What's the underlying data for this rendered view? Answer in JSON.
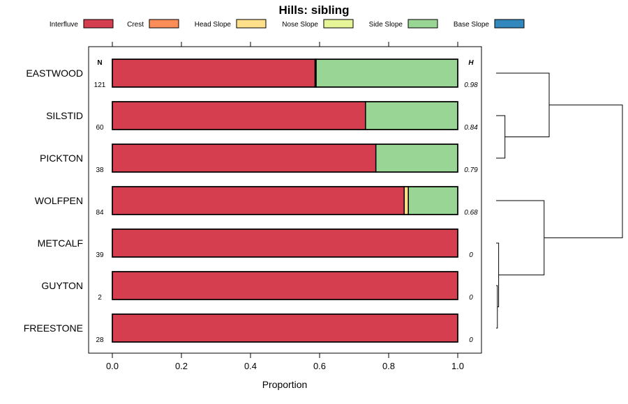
{
  "chart_data": {
    "type": "bar",
    "orientation": "horizontal",
    "stacked": true,
    "title": "Hills: sibling",
    "xlabel": "Proportion",
    "ylabel": "",
    "xlim": [
      0,
      1
    ],
    "x_ticks": [
      "0.0",
      "0.2",
      "0.4",
      "0.6",
      "0.8",
      "1.0"
    ],
    "legend_position": "top",
    "n_header": "N",
    "h_header": "H",
    "legend": [
      {
        "name": "Interfluve",
        "color": "#d53e4f"
      },
      {
        "name": "Crest",
        "color": "#fc8d59"
      },
      {
        "name": "Head Slope",
        "color": "#fee08b"
      },
      {
        "name": "Nose Slope",
        "color": "#e6f598"
      },
      {
        "name": "Side Slope",
        "color": "#99d594"
      },
      {
        "name": "Base Slope",
        "color": "#3288bd"
      }
    ],
    "categories": [
      "EASTWOOD",
      "SILSTID",
      "PICKTON",
      "WOLFPEN",
      "METCALF",
      "GUYTON",
      "FREESTONE"
    ],
    "n_values": [
      "121",
      "60",
      "38",
      "84",
      "39",
      "2",
      "28"
    ],
    "h_values": [
      "0.98",
      "0.84",
      "0.79",
      "0.68",
      "0",
      "0",
      "0"
    ],
    "series": [
      {
        "name": "Interfluve",
        "values": [
          0.587,
          0.733,
          0.763,
          0.845,
          1.0,
          1.0,
          1.0
        ]
      },
      {
        "name": "Crest",
        "values": [
          0,
          0,
          0,
          0,
          0,
          0,
          0
        ]
      },
      {
        "name": "Head Slope",
        "values": [
          0.003,
          0,
          0,
          0.012,
          0,
          0,
          0
        ]
      },
      {
        "name": "Nose Slope",
        "values": [
          0,
          0,
          0,
          0,
          0,
          0,
          0
        ]
      },
      {
        "name": "Side Slope",
        "values": [
          0.41,
          0.267,
          0.237,
          0.143,
          0,
          0,
          0
        ]
      },
      {
        "name": "Base Slope",
        "values": [
          0,
          0,
          0,
          0,
          0,
          0,
          0
        ]
      }
    ],
    "dendrogram": {
      "merges": [
        {
          "a": "GUYTON",
          "b": "FREESTONE",
          "height": 0.01
        },
        {
          "a": "METCALF",
          "b": "m1",
          "height": 0.02
        },
        {
          "a": "SILSTID",
          "b": "PICKTON",
          "height": 0.07
        },
        {
          "a": "WOLFPEN",
          "b": "m2",
          "height": 0.38
        },
        {
          "a": "EASTWOOD",
          "b": "m3",
          "height": 0.42
        },
        {
          "a": "m5",
          "b": "m4",
          "height": 1.0
        }
      ]
    },
    "grid": false
  }
}
